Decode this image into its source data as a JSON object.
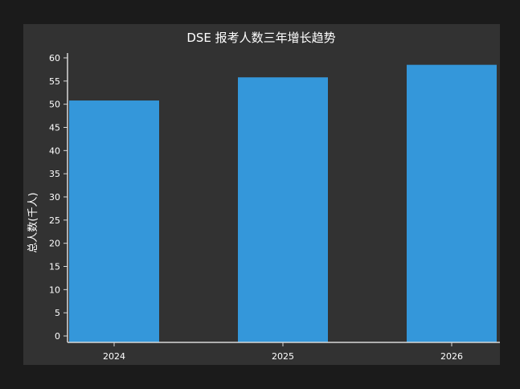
{
  "chart_data": {
    "type": "bar",
    "title": "DSE 报考人数三年增长趋势",
    "xlabel": "",
    "ylabel": "总人数(千人)",
    "categories": [
      "2024",
      "2025",
      "2026"
    ],
    "values": [
      50.8,
      55.8,
      58.5
    ],
    "ylim": [
      0,
      60
    ],
    "yticks": [
      "0",
      "5",
      "10",
      "15",
      "20",
      "25",
      "30",
      "35",
      "40",
      "45",
      "50",
      "55",
      "60"
    ],
    "grid": false,
    "bar_color": "#3497da",
    "background_color": "#323232"
  }
}
